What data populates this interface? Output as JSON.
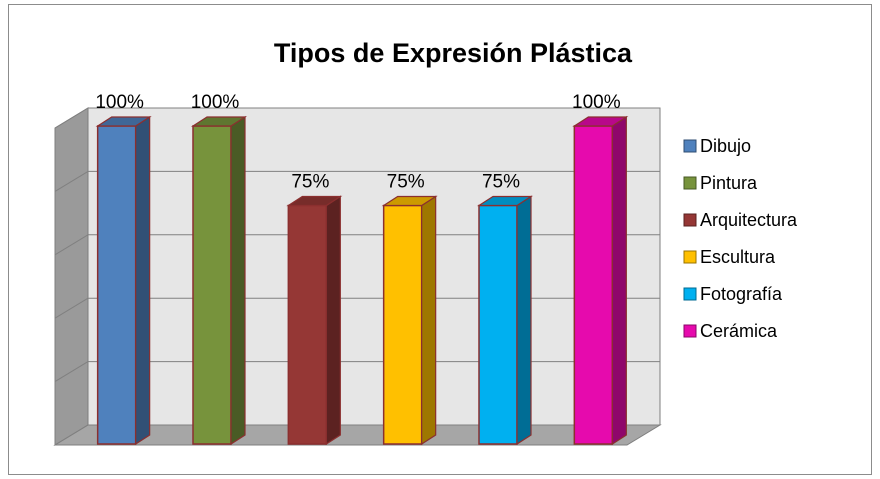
{
  "chart_data": {
    "type": "bar",
    "title": "Tipos de Expresión Plástica",
    "categories": [
      "Dibujo",
      "Pintura",
      "Arquitectura",
      "Escultura",
      "Fotografía",
      "Cerámica"
    ],
    "values": [
      100,
      100,
      75,
      75,
      75,
      100
    ],
    "data_labels": [
      "100%",
      "100%",
      "75%",
      "75%",
      "75%",
      "100%"
    ],
    "ylim": [
      0,
      100
    ],
    "grid": true,
    "legend_position": "right",
    "colors": [
      "#4f81bd",
      "#77933c",
      "#953735",
      "#ffc000",
      "#00b0f0",
      "#e60aad"
    ],
    "legend": [
      "Dibujo",
      "Pintura",
      "Arquitectura",
      "Escultura",
      "Fotografía",
      "Cerámica"
    ]
  }
}
